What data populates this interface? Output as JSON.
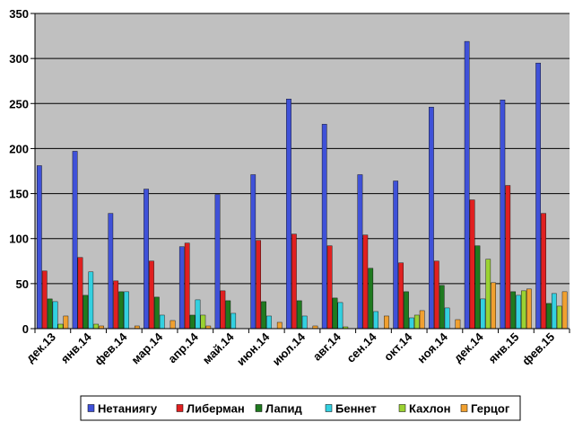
{
  "chart_data": {
    "type": "bar",
    "categories": [
      "дек.13",
      "янв.14",
      "фев.14",
      "мар.14",
      "апр.14",
      "май.14",
      "июн.14",
      "июл.14",
      "авг.14",
      "сен.14",
      "окт.14",
      "ноя.14",
      "дек.14",
      "янв.15",
      "фев.15"
    ],
    "series": [
      {
        "name": "Нетаниягу",
        "color": "#3f51d8",
        "values": [
          181,
          197,
          128,
          155,
          91,
          149,
          171,
          255,
          227,
          171,
          164,
          246,
          319,
          254,
          295
        ]
      },
      {
        "name": "Либерман",
        "color": "#e02020",
        "values": [
          64,
          79,
          53,
          75,
          95,
          42,
          98,
          105,
          92,
          104,
          73,
          75,
          143,
          159,
          128
        ]
      },
      {
        "name": "Лапид",
        "color": "#1f7a1f",
        "values": [
          33,
          37,
          41,
          35,
          15,
          31,
          30,
          31,
          34,
          67,
          41,
          48,
          92,
          41,
          28
        ]
      },
      {
        "name": "Беннет",
        "color": "#33d0e0",
        "values": [
          30,
          63,
          41,
          15,
          32,
          17,
          14,
          14,
          29,
          19,
          12,
          23,
          33,
          37,
          39
        ]
      },
      {
        "name": "Кахлон",
        "color": "#9bd232",
        "values": [
          5,
          5,
          0,
          0,
          15,
          0,
          0,
          0,
          2,
          0,
          15,
          0,
          77,
          42,
          25
        ]
      },
      {
        "name": "Герцог",
        "color": "#f0a030",
        "values": [
          14,
          3,
          3,
          9,
          3,
          0,
          7,
          3,
          0,
          14,
          20,
          10,
          51,
          44,
          41
        ]
      }
    ],
    "ylim": [
      0,
      350
    ],
    "yticks": [
      "0",
      "50",
      "100",
      "150",
      "200",
      "250",
      "300",
      "350"
    ],
    "ytick_values": [
      0,
      50,
      100,
      150,
      200,
      250,
      300,
      350
    ],
    "grid": true,
    "legend": "bottom",
    "plot_background": "#c0c0c0"
  }
}
